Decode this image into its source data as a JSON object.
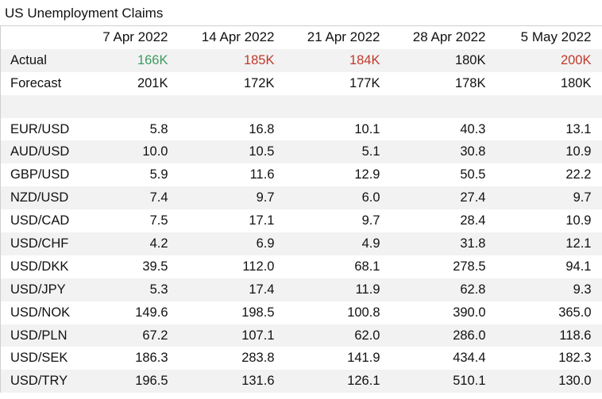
{
  "title": "US Unemployment Claims",
  "dates": [
    "7 Apr 2022",
    "14 Apr 2022",
    "21 Apr 2022",
    "28 Apr 2022",
    "5 May 2022"
  ],
  "actual": {
    "label": "Actual",
    "values": [
      "166K",
      "185K",
      "184K",
      "180K",
      "200K"
    ],
    "colors": [
      "#3c9a5f",
      "#c0392b",
      "#c0392b",
      "#111111",
      "#c0392b"
    ]
  },
  "forecast": {
    "label": "Forecast",
    "values": [
      "201K",
      "172K",
      "177K",
      "178K",
      "180K"
    ]
  },
  "pairs": [
    {
      "label": "EUR/USD",
      "values": [
        "5.8",
        "16.8",
        "10.1",
        "40.3",
        "13.1"
      ]
    },
    {
      "label": "AUD/USD",
      "values": [
        "10.0",
        "10.5",
        "5.1",
        "30.8",
        "10.9"
      ]
    },
    {
      "label": "GBP/USD",
      "values": [
        "5.9",
        "11.6",
        "12.9",
        "50.5",
        "22.2"
      ]
    },
    {
      "label": "NZD/USD",
      "values": [
        "7.4",
        "9.7",
        "6.0",
        "27.4",
        "9.7"
      ]
    },
    {
      "label": "USD/CAD",
      "values": [
        "7.5",
        "17.1",
        "9.7",
        "28.4",
        "10.9"
      ]
    },
    {
      "label": "USD/CHF",
      "values": [
        "4.2",
        "6.9",
        "4.9",
        "31.8",
        "12.1"
      ]
    },
    {
      "label": "USD/DKK",
      "values": [
        "39.5",
        "112.0",
        "68.1",
        "278.5",
        "94.1"
      ]
    },
    {
      "label": "USD/JPY",
      "values": [
        "5.3",
        "17.4",
        "11.9",
        "62.8",
        "9.3"
      ]
    },
    {
      "label": "USD/NOK",
      "values": [
        "149.6",
        "198.5",
        "100.8",
        "390.0",
        "365.0"
      ]
    },
    {
      "label": "USD/PLN",
      "values": [
        "67.2",
        "107.1",
        "62.0",
        "286.0",
        "118.6"
      ]
    },
    {
      "label": "USD/SEK",
      "values": [
        "186.3",
        "283.8",
        "141.9",
        "434.4",
        "182.3"
      ]
    },
    {
      "label": "USD/TRY",
      "values": [
        "196.5",
        "131.6",
        "126.1",
        "510.1",
        "130.0"
      ]
    }
  ]
}
